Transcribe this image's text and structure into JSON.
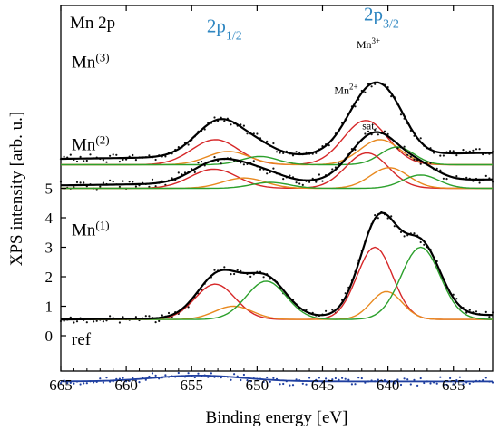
{
  "chart_data": {
    "type": "line",
    "title": "Mn 2p",
    "xlabel": "Binding energy [eV]",
    "ylabel": "XPS intensity [arb. u.]",
    "x_reversed": true,
    "xlim": [
      665,
      632
    ],
    "x_ticks": [
      665,
      660,
      655,
      650,
      645,
      640,
      635
    ],
    "y_ticks": [
      0,
      1,
      2,
      3,
      4,
      5
    ],
    "ylim": [
      -1.2,
      11.2
    ],
    "grid": false,
    "peak_labels": [
      {
        "text": "2p",
        "sub": "1/2",
        "x": 652.5,
        "y": 10.3
      },
      {
        "text": "2p",
        "sub": "3/2",
        "x": 640.5,
        "y": 10.7
      }
    ],
    "component_labels": [
      {
        "text": "Mn",
        "sup": "3+",
        "x": 641.5,
        "y": 9.75
      },
      {
        "text": "Mn",
        "sup": "2+",
        "x": 643.2,
        "y": 8.2
      },
      {
        "text": "sat.",
        "x": 641.4,
        "y": 7.0
      }
    ],
    "samples": [
      {
        "label": "Mn",
        "sup": "(3)",
        "label_y": 9.1,
        "offset": 5.8,
        "baseline": [
          0.2,
          0.4
        ],
        "components": [
          {
            "name": "Mn3+",
            "color": "#d62728",
            "peaks": [
              [
                641.7,
                1.5,
                4.0
              ],
              [
                653.2,
                0.85,
                4.2
              ]
            ]
          },
          {
            "name": "Mn2+",
            "color": "#e8891f",
            "peaks": [
              [
                640.6,
                0.85,
                3.6
              ],
              [
                652.2,
                0.45,
                3.8
              ]
            ]
          },
          {
            "name": "sat.",
            "color": "#2ca02c",
            "peaks": [
              [
                639.3,
                0.6,
                3.0
              ],
              [
                649.8,
                0.28,
                3.2
              ]
            ]
          }
        ]
      },
      {
        "label": "Mn",
        "sup": "(2)",
        "label_y": 6.3,
        "offset": 5.0,
        "baseline": [
          0.1,
          0.3
        ],
        "components": [
          {
            "name": "Mn3+",
            "color": "#d62728",
            "peaks": [
              [
                641.6,
                1.2,
                3.8
              ],
              [
                653.3,
                0.65,
                4.2
              ]
            ]
          },
          {
            "name": "Mn2+",
            "color": "#e8891f",
            "peaks": [
              [
                639.9,
                0.7,
                3.4
              ],
              [
                651.0,
                0.35,
                3.8
              ]
            ]
          },
          {
            "name": "sat.",
            "color": "#2ca02c",
            "peaks": [
              [
                637.5,
                0.45,
                3.2
              ],
              [
                649.0,
                0.2,
                3.4
              ]
            ]
          }
        ]
      },
      {
        "label": "Mn",
        "sup": "(1)",
        "label_y": 3.4,
        "offset": 0.55,
        "baseline": [
          0.0,
          0.15
        ],
        "components": [
          {
            "name": "Mn3+",
            "color": "#d62728",
            "peaks": [
              [
                641.0,
                2.45,
                3.2
              ],
              [
                653.2,
                1.2,
                3.6
              ]
            ]
          },
          {
            "name": "Mn2+",
            "color": "#e8891f",
            "peaks": [
              [
                640.1,
                0.95,
                2.8
              ],
              [
                651.8,
                0.45,
                3.4
              ]
            ]
          },
          {
            "name": "sat.",
            "color": "#2ca02c",
            "peaks": [
              [
                637.5,
                2.45,
                3.5
              ],
              [
                649.3,
                1.3,
                3.6
              ]
            ]
          }
        ]
      },
      {
        "label": "ref",
        "label_y": -0.3,
        "offset": -1.55,
        "baseline": [
          0.0,
          0.0
        ],
        "data_color": "#1f3fa0",
        "components": [
          {
            "name": "background",
            "color": "#1f3fa0",
            "peaks": [
              [
                654.5,
                0.2,
                8.0
              ]
            ]
          }
        ]
      }
    ]
  }
}
